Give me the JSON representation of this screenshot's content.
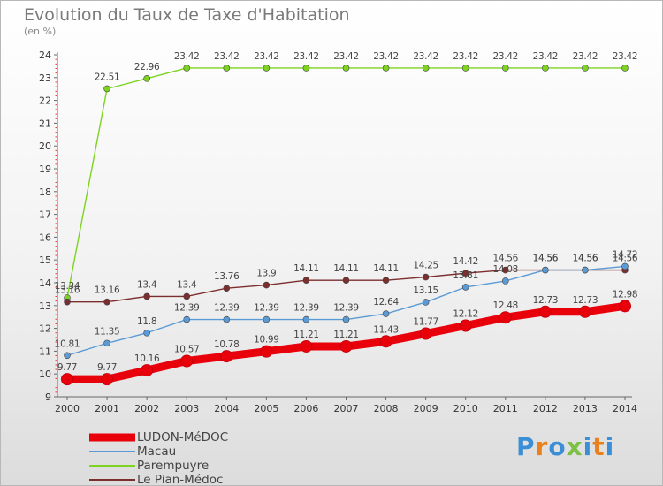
{
  "title": "Evolution du Taux de Taxe d'Habitation",
  "subtitle": "(en %)",
  "logo": {
    "letters": [
      "P",
      "r",
      "o",
      "x",
      "i",
      "t",
      "i"
    ],
    "colors": [
      "#3a8fd6",
      "#e8801c",
      "#3a8fd6",
      "#7cc143",
      "#3a8fd6",
      "#e8801c",
      "#3a8fd6"
    ]
  },
  "chart_data": {
    "type": "line",
    "x": [
      "2000",
      "2001",
      "2002",
      "2003",
      "2004",
      "2005",
      "2006",
      "2007",
      "2008",
      "2009",
      "2010",
      "2011",
      "2012",
      "2013",
      "2014"
    ],
    "ylim": [
      9,
      24
    ],
    "yticks": [
      "9",
      "10",
      "11",
      "12",
      "13",
      "14",
      "15",
      "16",
      "17",
      "18",
      "19",
      "20",
      "21",
      "22",
      "23",
      "24"
    ],
    "grid": false,
    "legend_position": "bottom-left",
    "series": [
      {
        "name": "LUDON-MéDOC",
        "color": "#e8000b",
        "width": 9,
        "marker": 6.5,
        "values": [
          9.77,
          9.77,
          10.16,
          10.57,
          10.78,
          10.99,
          11.21,
          11.21,
          11.43,
          11.77,
          12.12,
          12.48,
          12.73,
          12.73,
          12.98
        ],
        "labels": [
          "9.77",
          "9.77",
          "10.16",
          "10.57",
          "10.78",
          "10.99",
          "11.21",
          "11.21",
          "11.43",
          "11.77",
          "12.12",
          "12.48",
          "12.73",
          "12.73",
          "12.98"
        ]
      },
      {
        "name": "Macau",
        "color": "#5b9bd5",
        "width": 1.4,
        "marker": 3.5,
        "values": [
          10.81,
          11.35,
          11.8,
          12.39,
          12.39,
          12.39,
          12.39,
          12.39,
          12.64,
          13.15,
          13.81,
          14.08,
          14.56,
          14.56,
          14.72
        ],
        "labels": [
          "10.81",
          "11.35",
          "11.8",
          "12.39",
          "12.39",
          "12.39",
          "12.39",
          "12.39",
          "12.64",
          "13.15",
          "13.81",
          "14.08",
          "14.56",
          "14.56",
          "14.72"
        ]
      },
      {
        "name": "Parempuyre",
        "color": "#7ed321",
        "width": 1.4,
        "marker": 3.5,
        "values": [
          13.34,
          22.51,
          22.96,
          23.42,
          23.42,
          23.42,
          23.42,
          23.42,
          23.42,
          23.42,
          23.42,
          23.42,
          23.42,
          23.42,
          23.42
        ],
        "labels": [
          "13.34",
          "22.51",
          "22.96",
          "23.42",
          "23.42",
          "23.42",
          "23.42",
          "23.42",
          "23.42",
          "23.42",
          "23.42",
          "23.42",
          "23.42",
          "23.42",
          "23.42"
        ]
      },
      {
        "name": "Le Pian-Médoc",
        "color": "#7b2e2e",
        "width": 1.4,
        "marker": 3.5,
        "values": [
          13.16,
          13.16,
          13.4,
          13.4,
          13.76,
          13.9,
          14.11,
          14.11,
          14.11,
          14.25,
          14.42,
          14.56,
          14.56,
          14.56,
          14.56
        ],
        "labels": [
          "13.16",
          "13.16",
          "13.4",
          "13.4",
          "13.76",
          "13.9",
          "14.11",
          "14.11",
          "14.11",
          "14.25",
          "14.42",
          "14.56",
          "14.56",
          "14.56",
          "14.56"
        ]
      }
    ]
  }
}
